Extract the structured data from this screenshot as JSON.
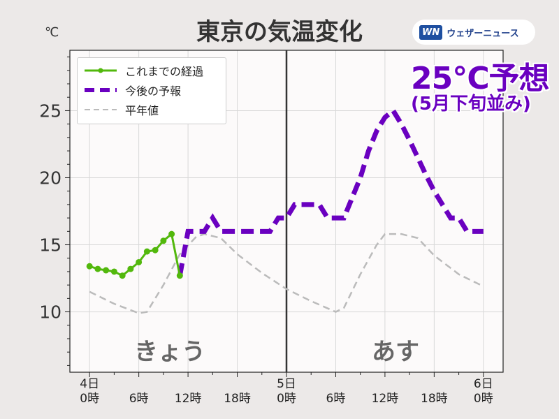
{
  "title": "東京の気温変化",
  "logo": {
    "mark": "WN",
    "text": "ウェザーニュース"
  },
  "unit": "℃",
  "annotation": {
    "main": "25℃予想",
    "sub": "(5月下旬並み)"
  },
  "day_labels": [
    "きょう",
    "あす"
  ],
  "colors": {
    "observed": "#52b80c",
    "forecast": "#6a00c0",
    "normal": "#bbbbbb"
  },
  "chart_data": {
    "type": "line",
    "title": "東京の気温変化",
    "ylabel": "℃",
    "ylim": [
      5.5,
      29.5
    ],
    "xlim": [
      -2.4,
      50.4
    ],
    "yticks": [
      10,
      15,
      20,
      25
    ],
    "xtick_labels": [
      {
        "h": 0,
        "l1": "4日",
        "l2": "0時"
      },
      {
        "h": 6,
        "l1": "",
        "l2": "6時"
      },
      {
        "h": 12,
        "l1": "",
        "l2": "12時"
      },
      {
        "h": 18,
        "l1": "",
        "l2": "18時"
      },
      {
        "h": 24,
        "l1": "5日",
        "l2": "0時"
      },
      {
        "h": 30,
        "l1": "",
        "l2": "6時"
      },
      {
        "h": 36,
        "l1": "",
        "l2": "12時"
      },
      {
        "h": 42,
        "l1": "",
        "l2": "18時"
      },
      {
        "h": 48,
        "l1": "6日",
        "l2": "0時"
      }
    ],
    "grid": true,
    "legend_position": "top-left",
    "series": [
      {
        "name": "これまでの経過",
        "style": "solid-markers",
        "x": [
          0,
          1,
          2,
          3,
          4,
          5,
          6,
          7,
          8,
          9,
          10,
          11
        ],
        "y": [
          13.4,
          13.2,
          13.1,
          13.0,
          12.7,
          13.2,
          13.7,
          14.5,
          14.6,
          15.3,
          15.8,
          12.7
        ]
      },
      {
        "name": "今後の予報",
        "style": "dashed-thick",
        "x": [
          11,
          12,
          14,
          15,
          16,
          22,
          23,
          24,
          25,
          28,
          29,
          31,
          33,
          34,
          35,
          36,
          37,
          38,
          39,
          40,
          41,
          42,
          43,
          44,
          45,
          46,
          47,
          48
        ],
        "y": [
          12.7,
          16,
          16,
          17,
          16,
          16,
          17,
          17,
          18,
          18,
          17,
          17,
          20,
          22,
          23.5,
          24.5,
          25,
          24,
          22.8,
          21.5,
          20.2,
          19,
          18,
          17,
          17,
          16,
          16,
          16
        ]
      },
      {
        "name": "平年値",
        "style": "dashed-thin",
        "x": [
          0,
          3,
          6,
          7,
          9,
          11,
          13,
          14,
          16,
          18,
          21,
          24,
          27,
          30,
          31,
          33,
          35,
          36,
          38,
          40,
          42,
          45,
          48
        ],
        "y": [
          11.5,
          10.6,
          9.9,
          10.0,
          12.0,
          14.3,
          15.6,
          15.8,
          15.5,
          14.3,
          12.9,
          11.7,
          10.8,
          10.0,
          10.3,
          12.8,
          15.0,
          15.8,
          15.8,
          15.5,
          14.2,
          12.8,
          11.9
        ]
      }
    ]
  }
}
